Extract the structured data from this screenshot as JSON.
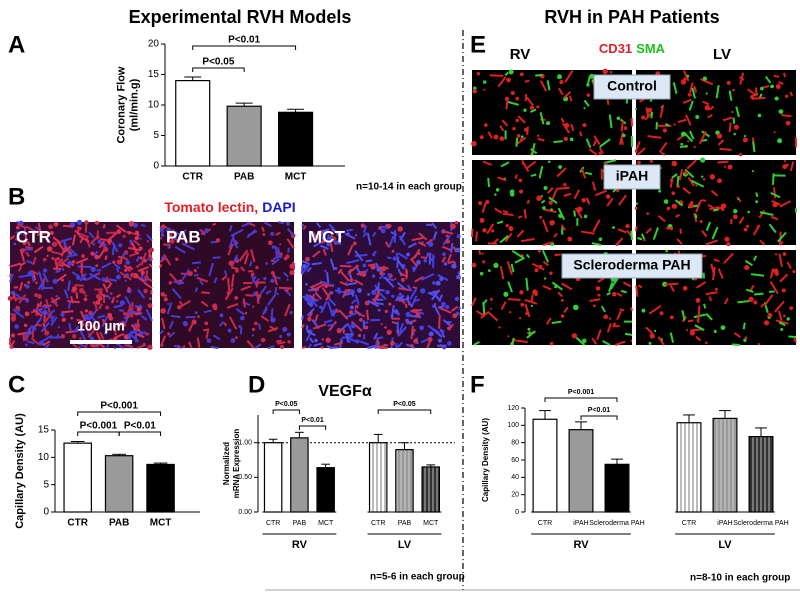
{
  "headings": {
    "left": "Experimental RVH Models",
    "right": "RVH in PAH Patients"
  },
  "panel_letters": [
    "A",
    "B",
    "C",
    "D",
    "E",
    "F"
  ],
  "panel_b": {
    "stains": [
      "Tomato lectin,",
      "DAPI"
    ],
    "images": [
      "CTR",
      "PAB",
      "MCT"
    ],
    "scale_bar": "100 µm"
  },
  "panel_e": {
    "columns": [
      "RV",
      "LV"
    ],
    "stains": [
      "CD31",
      "SMA"
    ],
    "rows": [
      "Control",
      "iPAH",
      "Scleroderma PAH"
    ]
  },
  "chart_data": [
    {
      "type": "bar",
      "y_label": [
        "Coronary Flow",
        "(ml/min.g)"
      ],
      "categories": [
        "CTR",
        "PAB",
        "MCT"
      ],
      "values": [
        14,
        9.8,
        8.8
      ],
      "errors": [
        0.6,
        0.5,
        0.5
      ],
      "colors": [
        "#ffffff",
        "#9a9a9a",
        "#000000"
      ],
      "ylim": [
        0,
        20
      ],
      "yticks": [
        0,
        5,
        10,
        15,
        20
      ],
      "significance": [
        "P<0.01",
        "P<0.05"
      ],
      "note": "n=10-14 in each group"
    },
    {
      "type": "bar",
      "y_label": [
        "Capillary Density (AU)"
      ],
      "categories": [
        "CTR",
        "PAB",
        "MCT"
      ],
      "values": [
        12.6,
        10.3,
        8.7
      ],
      "errors": [
        0.3,
        0.25,
        0.25
      ],
      "colors": [
        "#ffffff",
        "#9a9a9a",
        "#000000"
      ],
      "ylim": [
        0,
        15
      ],
      "yticks": [
        0,
        5,
        10,
        15
      ],
      "significance": [
        "P<0.001",
        "P<0.001",
        "P<0.01"
      ]
    },
    {
      "type": "bar",
      "title": "VEGFα",
      "y_label": [
        "Normalized",
        "mRNA Expression"
      ],
      "categories": [
        "CTR",
        "PAB",
        "MCT",
        "CTR",
        "PAB",
        "MCT"
      ],
      "category_groups": [
        "RV",
        "RV",
        "RV",
        "LV",
        "LV",
        "LV"
      ],
      "values": [
        1.0,
        1.07,
        0.64,
        1.0,
        0.9,
        0.65
      ],
      "errors": [
        0.05,
        0.08,
        0.05,
        0.12,
        0.1,
        0.03
      ],
      "colors": [
        "#ffffff",
        "#9a9a9a",
        "#000000",
        "#ffffff",
        "#9a9a9a",
        "#333333"
      ],
      "hatched": [
        false,
        false,
        false,
        true,
        true,
        true
      ],
      "ylim": [
        0,
        1.4
      ],
      "yticks": [
        {
          "value": 0,
          "label": "0.00"
        },
        {
          "value": 0.5,
          "label": "0.50"
        },
        {
          "value": 1,
          "label": "1.00"
        }
      ],
      "reference_line": 1,
      "significance": [
        "P<0.05",
        "P<0.01",
        "P<0.05"
      ],
      "note": "n=5-6 in each group"
    },
    {
      "type": "bar",
      "y_label": [
        "Capillary Density (AU)"
      ],
      "categories": [
        "CTR",
        "iPAH",
        "Scleroderma PAH",
        "CTR",
        "iPAH",
        "Scleroderma PAH"
      ],
      "category_groups": [
        "RV",
        "RV",
        "RV",
        "LV",
        "LV",
        "LV"
      ],
      "values": [
        107,
        95,
        55,
        103,
        108,
        87
      ],
      "errors": [
        10,
        9,
        6,
        9,
        9,
        10
      ],
      "colors": [
        "#ffffff",
        "#9a9a9a",
        "#000000",
        "#ffffff",
        "#9a9a9a",
        "#333333"
      ],
      "hatched": [
        false,
        false,
        false,
        true,
        true,
        true
      ],
      "ylim": [
        0,
        120
      ],
      "yticks": [
        0,
        20,
        40,
        60,
        80,
        100,
        120
      ],
      "significance": [
        "P<0.001",
        "P<0.01"
      ],
      "note": "n=8-10 in each group"
    }
  ]
}
